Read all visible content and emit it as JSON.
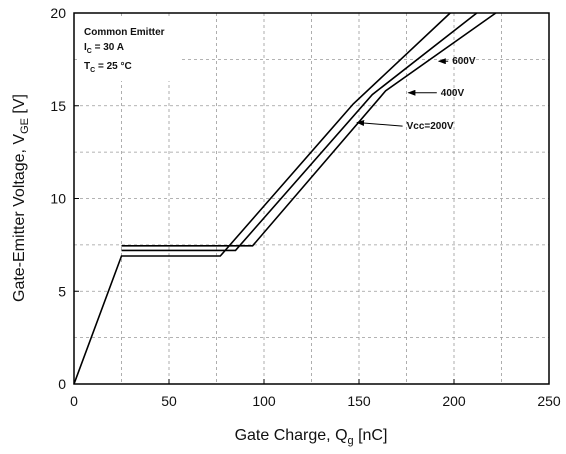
{
  "chart_data": {
    "type": "line",
    "xlabel": "Gate Charge, Q",
    "xlabel_sub": "g",
    "xlabel_unit": " [nC]",
    "ylabel": "Gate-Emitter Voltage, V",
    "ylabel_sub": "GE",
    "ylabel_unit": " [V]",
    "xlim": [
      0,
      250
    ],
    "ylim": [
      0,
      20
    ],
    "xticks": [
      0,
      50,
      100,
      150,
      200,
      250
    ],
    "yticks": [
      0,
      5,
      10,
      15,
      20
    ],
    "grid": true,
    "conditions": {
      "line1": "Common Emitter",
      "ic_main": "I",
      "ic_sub": "C",
      "ic_value": " = 30 A",
      "tc_main": "T",
      "tc_sub": "C",
      "tc_value": " = 25 °C"
    },
    "series": [
      {
        "name": "Vcc=200V",
        "x": [
          0,
          25,
          77,
          147,
          198
        ],
        "y": [
          0,
          6.9,
          6.9,
          15.1,
          20
        ]
      },
      {
        "name": "400V",
        "x": [
          25,
          85,
          157,
          212
        ],
        "y": [
          7.2,
          7.2,
          15.6,
          20
        ]
      },
      {
        "name": "600V",
        "x": [
          25,
          94,
          164,
          222
        ],
        "y": [
          7.45,
          7.45,
          15.8,
          20
        ]
      }
    ],
    "annotations": [
      {
        "text": "600V",
        "x": 198,
        "y": 17.4,
        "arrow_to": [
          192,
          17.4
        ]
      },
      {
        "text": "400V",
        "x": 192,
        "y": 15.7,
        "arrow_to": [
          176,
          15.7
        ]
      },
      {
        "text": "Vcc=200V",
        "x": 174,
        "y": 13.9,
        "arrow_to": [
          149,
          14.1
        ]
      }
    ]
  }
}
